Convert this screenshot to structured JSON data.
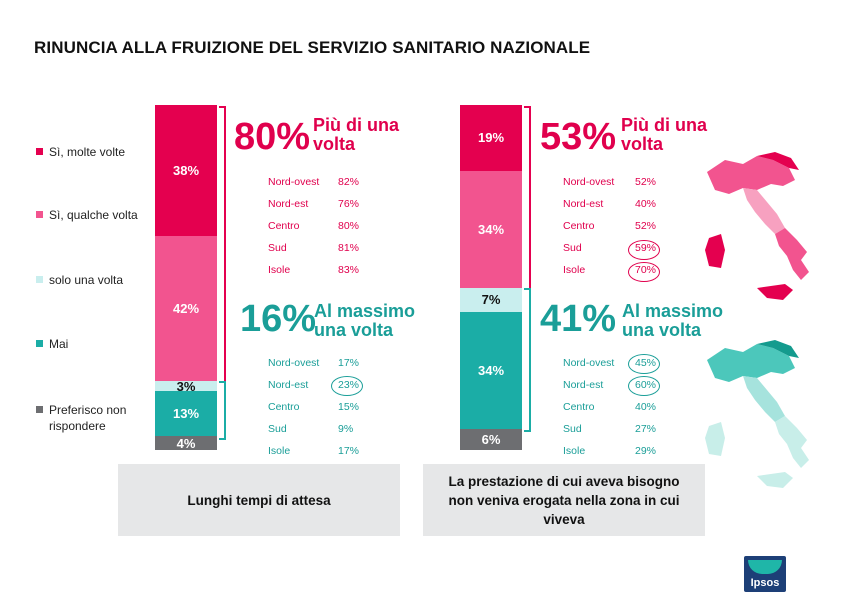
{
  "title": "RINUNCIA ALLA FRUIZIONE DEL SERVIZIO SANITARIO NAZIONALE",
  "colors": {
    "molte": "#e4004f",
    "qualche": "#f2548f",
    "una": "#c9eeee",
    "mai": "#1bada6",
    "nonrisp": "#6d6e71",
    "pink_text": "#e0004d",
    "teal_text": "#1a9e98"
  },
  "legend": [
    {
      "label": "Sì, molte volte",
      "color": "#e4004f"
    },
    {
      "label": "Sì, qualche volta",
      "color": "#f2548f"
    },
    {
      "label": "solo una volta",
      "color": "#c9eeee"
    },
    {
      "label": "Mai",
      "color": "#1bada6"
    },
    {
      "label": "Preferisco non rispondere",
      "color": "#6d6e71"
    }
  ],
  "chart_data": {
    "type": "bar",
    "stacked": true,
    "categories": [
      "Lunghi tempi di attesa",
      "La prestazione di cui aveva bisogno non veniva erogata nella zona in cui viveva"
    ],
    "series": [
      {
        "name": "Sì, molte volte",
        "values": [
          38,
          19
        ]
      },
      {
        "name": "Sì, qualche volta",
        "values": [
          42,
          34
        ]
      },
      {
        "name": "solo una volta",
        "values": [
          3,
          7
        ]
      },
      {
        "name": "Mai",
        "values": [
          13,
          34
        ]
      },
      {
        "name": "Preferisco non rispondere",
        "values": [
          4,
          6
        ]
      }
    ],
    "value_labels": [
      [
        "38%",
        "42%",
        "3%",
        "13%",
        "4%"
      ],
      [
        "19%",
        "34%",
        "7%",
        "34%",
        "6%"
      ]
    ],
    "legend_position": "left",
    "ylim": [
      0,
      100
    ]
  },
  "panels": [
    {
      "category": "Lunghi tempi di attesa",
      "top_pct": "80%",
      "top_label_1": "Più di una",
      "top_label_2": "volta",
      "top_regions": [
        {
          "name": "Nord-ovest",
          "value": "82%"
        },
        {
          "name": "Nord-est",
          "value": "76%"
        },
        {
          "name": "Centro",
          "value": "80%"
        },
        {
          "name": "Sud",
          "value": "81%"
        },
        {
          "name": "Isole",
          "value": "83%"
        }
      ],
      "bottom_pct": "16%",
      "bottom_label_1": "Al massimo",
      "bottom_label_2": "una volta",
      "bottom_regions": [
        {
          "name": "Nord-ovest",
          "value": "17%"
        },
        {
          "name": "Nord-est",
          "value": "23%"
        },
        {
          "name": "Centro",
          "value": "15%"
        },
        {
          "name": "Sud",
          "value": "9%"
        },
        {
          "name": "Isole",
          "value": "17%"
        }
      ]
    },
    {
      "category": "La prestazione di cui aveva bisogno non veniva erogata nella zona in cui viveva",
      "top_pct": "53%",
      "top_label_1": "Più di una",
      "top_label_2": "volta",
      "top_regions": [
        {
          "name": "Nord-ovest",
          "value": "52%"
        },
        {
          "name": "Nord-est",
          "value": "40%"
        },
        {
          "name": "Centro",
          "value": "52%"
        },
        {
          "name": "Sud",
          "value": "59%"
        },
        {
          "name": "Isole",
          "value": "70%"
        }
      ],
      "bottom_pct": "41%",
      "bottom_label_1": "Al massimo",
      "bottom_label_2": "una volta",
      "bottom_regions": [
        {
          "name": "Nord-ovest",
          "value": "45%"
        },
        {
          "name": "Nord-est",
          "value": "60%"
        },
        {
          "name": "Centro",
          "value": "40%"
        },
        {
          "name": "Sud",
          "value": "27%"
        },
        {
          "name": "Isole",
          "value": "29%"
        }
      ]
    }
  ],
  "box_left": "Lunghi tempi di attesa",
  "box_right": "La prestazione di cui aveva bisogno non veniva erogata nella zona in cui viveva",
  "logo_text": "Ipsos"
}
